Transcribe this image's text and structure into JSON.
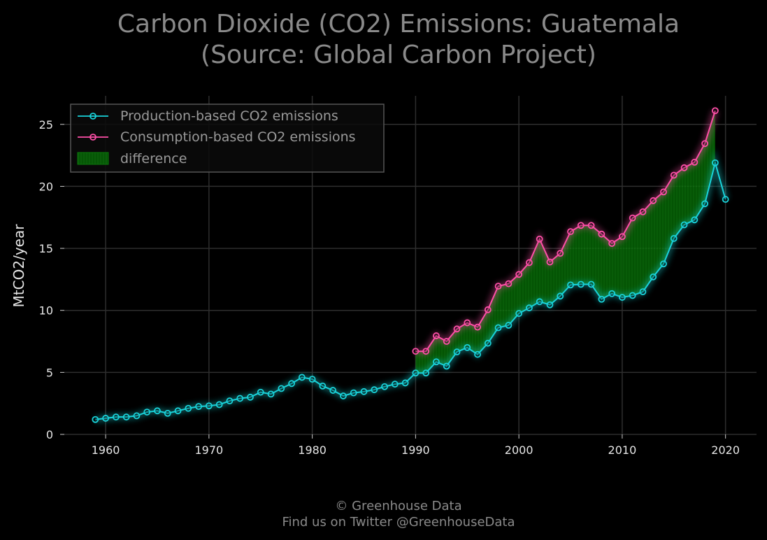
{
  "chart_data": {
    "type": "line",
    "title": [
      "Carbon Dioxide (CO2) Emissions: Guatemala",
      "(Source: Global Carbon Project)"
    ],
    "xlabel": "",
    "ylabel": "MtCO2/year",
    "xlim": [
      1956,
      2023
    ],
    "ylim": [
      0,
      27.3
    ],
    "x_ticks": [
      1960,
      1970,
      1980,
      1990,
      2000,
      2010,
      2020
    ],
    "y_ticks": [
      0,
      5,
      10,
      15,
      20,
      25
    ],
    "grid": true,
    "legend_position": "top-left",
    "colors": {
      "production": "#19d3da",
      "consumption": "#ff4fa8",
      "difference": "#0a7a0a",
      "background": "#000000"
    },
    "legend": [
      {
        "key": "production",
        "label": "Production-based CO2 emissions"
      },
      {
        "key": "consumption",
        "label": "Consumption-based CO2 emissions"
      },
      {
        "key": "difference",
        "label": "difference"
      }
    ],
    "series": [
      {
        "key": "production",
        "name": "Production-based CO2 emissions",
        "x": [
          1959,
          1960,
          1961,
          1962,
          1963,
          1964,
          1965,
          1966,
          1967,
          1968,
          1969,
          1970,
          1971,
          1972,
          1973,
          1974,
          1975,
          1976,
          1977,
          1978,
          1979,
          1980,
          1981,
          1982,
          1983,
          1984,
          1985,
          1986,
          1987,
          1988,
          1989,
          1990,
          1991,
          1992,
          1993,
          1994,
          1995,
          1996,
          1997,
          1998,
          1999,
          2000,
          2001,
          2002,
          2003,
          2004,
          2005,
          2006,
          2007,
          2008,
          2009,
          2010,
          2011,
          2012,
          2013,
          2014,
          2015,
          2016,
          2017,
          2018,
          2019,
          2020
        ],
        "y": [
          1.2,
          1.3,
          1.4,
          1.4,
          1.5,
          1.8,
          1.9,
          1.7,
          1.9,
          2.1,
          2.25,
          2.3,
          2.4,
          2.7,
          2.9,
          3.0,
          3.4,
          3.25,
          3.7,
          4.1,
          4.6,
          4.45,
          3.9,
          3.55,
          3.1,
          3.35,
          3.45,
          3.6,
          3.85,
          4.05,
          4.15,
          4.95,
          4.95,
          5.85,
          5.5,
          6.65,
          7.0,
          6.45,
          7.35,
          8.6,
          8.8,
          9.75,
          10.2,
          10.7,
          10.45,
          11.15,
          12.05,
          12.1,
          12.1,
          10.9,
          11.35,
          11.05,
          11.2,
          11.5,
          12.7,
          13.75,
          15.8,
          16.9,
          17.3,
          18.6,
          21.9,
          18.95
        ]
      },
      {
        "key": "consumption",
        "name": "Consumption-based CO2 emissions",
        "x": [
          1990,
          1991,
          1992,
          1993,
          1994,
          1995,
          1996,
          1997,
          1998,
          1999,
          2000,
          2001,
          2002,
          2003,
          2004,
          2005,
          2006,
          2007,
          2008,
          2009,
          2010,
          2011,
          2012,
          2013,
          2014,
          2015,
          2016,
          2017,
          2018,
          2019
        ],
        "y": [
          6.7,
          6.7,
          7.95,
          7.5,
          8.5,
          9.0,
          8.65,
          10.05,
          11.95,
          12.15,
          12.9,
          13.85,
          15.75,
          13.9,
          14.6,
          16.35,
          16.85,
          16.85,
          16.15,
          15.4,
          15.95,
          17.45,
          17.95,
          18.85,
          19.55,
          20.9,
          21.5,
          21.95,
          23.45,
          26.1
        ]
      }
    ]
  },
  "footer": {
    "copyright": "© Greenhouse Data",
    "twitter": "Find us on Twitter @GreenhouseData"
  }
}
